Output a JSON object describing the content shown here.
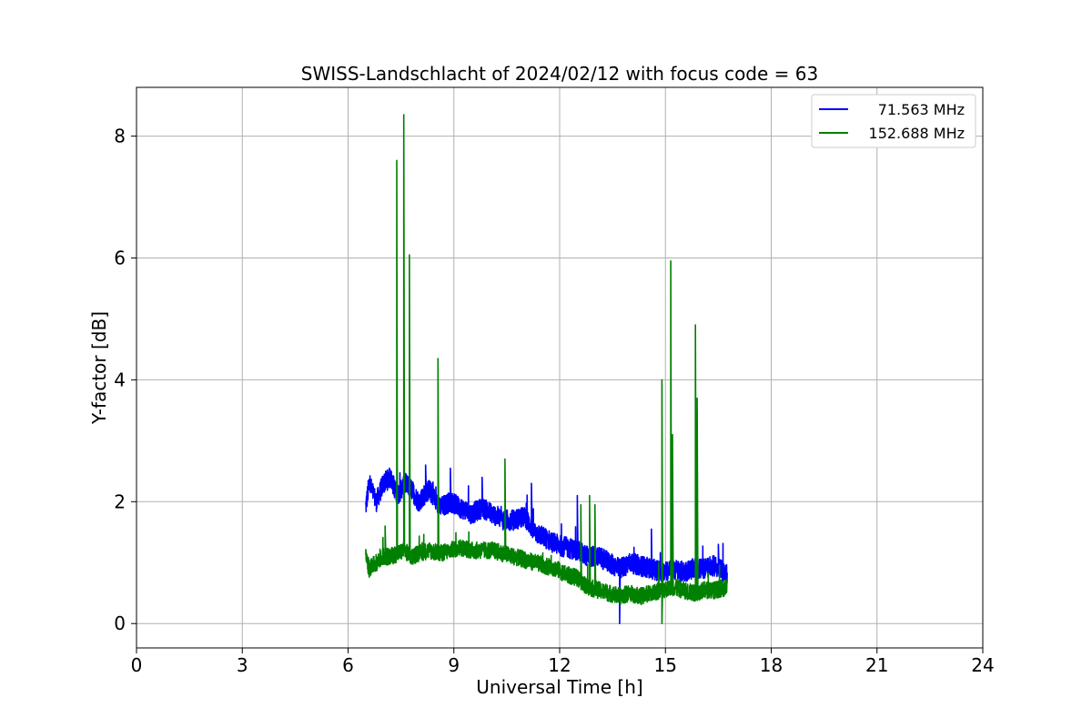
{
  "chart_data": {
    "type": "line",
    "title": "SWISS-Landschlacht of 2024/02/12 with focus code = 63",
    "xlabel": "Universal Time [h]",
    "ylabel": "Y-factor [dB]",
    "xlim": [
      0,
      24
    ],
    "ylim": [
      -0.4,
      8.8
    ],
    "xticks": [
      0,
      3,
      6,
      9,
      12,
      15,
      18,
      21,
      24
    ],
    "yticks": [
      0,
      2,
      4,
      6,
      8
    ],
    "grid": true,
    "legend_position": "top-right",
    "series": [
      {
        "name": "71.563 MHz",
        "color": "#0000ff",
        "x": [
          6.5,
          6.6,
          6.8,
          7.0,
          7.2,
          7.4,
          7.6,
          7.8,
          8.0,
          8.3,
          8.6,
          8.9,
          9.2,
          9.5,
          9.8,
          10.1,
          10.4,
          10.7,
          11.0,
          11.3,
          11.6,
          11.9,
          12.2,
          12.5,
          12.8,
          13.1,
          13.4,
          13.7,
          14.0,
          14.3,
          14.6,
          14.9,
          15.2,
          15.5,
          15.8,
          16.1,
          16.4,
          16.75
        ],
        "y": [
          1.9,
          2.3,
          2.0,
          2.3,
          2.4,
          2.1,
          2.3,
          2.2,
          2.0,
          2.2,
          1.9,
          2.0,
          1.9,
          1.8,
          1.9,
          1.8,
          1.7,
          1.7,
          1.75,
          1.5,
          1.4,
          1.3,
          1.25,
          1.2,
          1.1,
          1.1,
          1.0,
          0.9,
          1.0,
          0.95,
          0.9,
          0.85,
          0.9,
          0.85,
          0.9,
          0.9,
          0.95,
          0.8
        ],
        "spikes": [
          [
            7.1,
            2.5
          ],
          [
            8.2,
            2.6
          ],
          [
            8.9,
            2.55
          ],
          [
            9.8,
            2.4
          ],
          [
            11.2,
            2.3
          ],
          [
            12.5,
            2.1
          ],
          [
            13.7,
            0.0
          ],
          [
            14.6,
            1.55
          ],
          [
            16.5,
            1.3
          ]
        ]
      },
      {
        "name": "152.688 MHz",
        "color": "#008000",
        "x": [
          6.5,
          6.6,
          6.8,
          7.0,
          7.2,
          7.4,
          7.6,
          7.8,
          8.0,
          8.3,
          8.6,
          8.9,
          9.2,
          9.5,
          9.8,
          10.1,
          10.4,
          10.7,
          11.0,
          11.3,
          11.6,
          11.9,
          12.2,
          12.5,
          12.8,
          13.1,
          13.4,
          13.7,
          14.0,
          14.3,
          14.6,
          14.9,
          15.2,
          15.5,
          15.8,
          16.1,
          16.4,
          16.75
        ],
        "y": [
          1.1,
          0.9,
          1.0,
          1.1,
          1.1,
          1.15,
          1.2,
          1.1,
          1.15,
          1.2,
          1.15,
          1.2,
          1.25,
          1.2,
          1.2,
          1.2,
          1.15,
          1.1,
          1.05,
          1.0,
          0.95,
          0.9,
          0.8,
          0.75,
          0.6,
          0.55,
          0.5,
          0.45,
          0.5,
          0.45,
          0.5,
          0.55,
          0.6,
          0.55,
          0.5,
          0.55,
          0.55,
          0.6
        ],
        "spikes": [
          [
            7.05,
            1.6
          ],
          [
            7.38,
            7.6
          ],
          [
            7.58,
            8.35
          ],
          [
            7.74,
            6.05
          ],
          [
            8.55,
            4.35
          ],
          [
            10.45,
            2.7
          ],
          [
            12.6,
            1.95
          ],
          [
            12.85,
            2.1
          ],
          [
            13.0,
            1.95
          ],
          [
            14.9,
            4.0
          ],
          [
            15.15,
            5.95
          ],
          [
            15.2,
            3.1
          ],
          [
            15.85,
            4.9
          ],
          [
            15.9,
            3.7
          ],
          [
            14.9,
            0.0
          ]
        ]
      }
    ]
  }
}
